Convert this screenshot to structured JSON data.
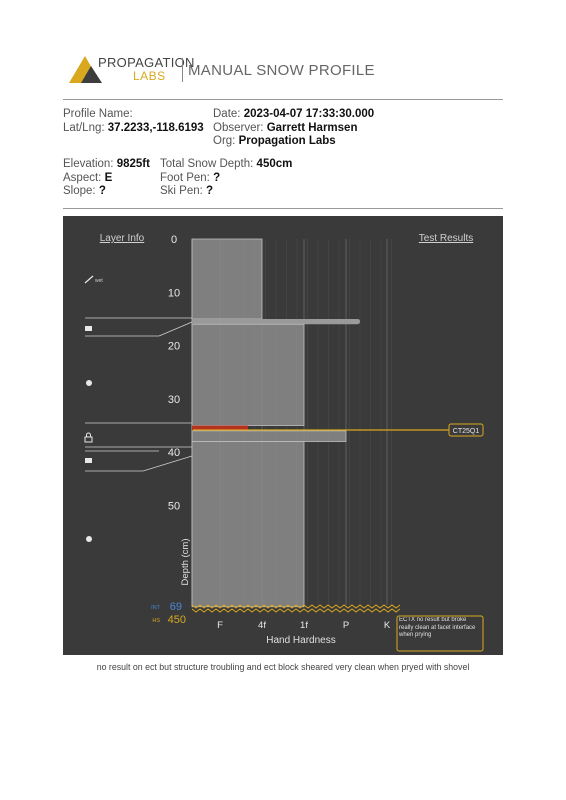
{
  "header": {
    "logo_line1": "PROPAGATION",
    "logo_line2": "LABS",
    "title": "MANUAL SNOW PROFILE"
  },
  "profile": {
    "name_label": "Profile Name:",
    "name_value": "",
    "latlng_label": "Lat/Lng:",
    "latlng_value": "37.2233,-118.6193",
    "date_label": "Date:",
    "date_value": "2023-04-07 17:33:30.000",
    "observer_label": "Observer:",
    "observer_value": "Garrett Harmsen",
    "org_label": "Org:",
    "org_value": "Propagation Labs",
    "elevation_label": "Elevation:",
    "elevation_value": "9825ft",
    "aspect_label": "Aspect:",
    "aspect_value": "E",
    "slope_label": "Slope:",
    "slope_value": "?",
    "total_depth_label": "Total Snow Depth:",
    "total_depth_value": "450cm",
    "foot_pen_label": "Foot Pen:",
    "foot_pen_value": "?",
    "ski_pen_label": "Ski Pen:",
    "ski_pen_value": "?"
  },
  "chart": {
    "layer_info_label": "Layer Info",
    "test_results_label": "Test Results",
    "depth_axis_label": "Depth (cm)",
    "hardness_axis_label": "Hand Hardness",
    "depth_ticks": [
      "0",
      "10",
      "20",
      "30",
      "40",
      "50"
    ],
    "hardness_ticks": [
      "F",
      "4f",
      "1f",
      "P",
      "K"
    ],
    "int_label": "INT",
    "int_value": "69",
    "hs_label": "HS",
    "hs_value": "450",
    "wet_label": "wet",
    "test_tag": "CT25Q1",
    "test_note": "ECTX no result but broke really clean at facet interface when prying",
    "colors": {
      "panel": "#3a3a3a",
      "layer_fill": "#8c8c8c",
      "weak_layer": "#b5321f",
      "test_line": "#d9a81f",
      "int_value": "#4a86d6",
      "hs_value": "#d9a81f"
    }
  },
  "chart_data": {
    "type": "snow-profile",
    "depth_unit": "cm",
    "hardness_scale": [
      "F",
      "4f",
      "1f",
      "P",
      "K"
    ],
    "layers": [
      {
        "top": 0,
        "bottom": 15,
        "hardness": "4f"
      },
      {
        "top": 15,
        "bottom": 16,
        "hardness": "P+",
        "grain": "melt-freeze crust"
      },
      {
        "top": 16,
        "bottom": 35,
        "hardness": "1f"
      },
      {
        "top": 35,
        "bottom": 36,
        "hardness": "F+",
        "weak_layer": true
      },
      {
        "top": 36,
        "bottom": 38,
        "hardness": "P"
      },
      {
        "top": 38,
        "bottom": 69,
        "hardness": "1f"
      }
    ],
    "tests": [
      {
        "result": "CT25Q1",
        "depth": 36
      }
    ],
    "int_depth": 69,
    "hs": 450
  },
  "comment": "no result on ect but structure troubling and ect block sheared very clean when pryed with shovel"
}
